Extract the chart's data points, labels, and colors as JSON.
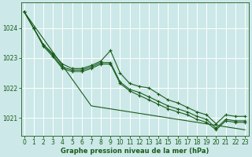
{
  "bg_color": "#cce8e8",
  "grid_color": "#ffffff",
  "line_color": "#1a5c1a",
  "xlabel": "Graphe pression niveau de la mer (hPa)",
  "xlabel_color": "#1a5c1a",
  "tick_color": "#1a5c1a",
  "yticks": [
    1021,
    1022,
    1023,
    1024
  ],
  "xticks": [
    0,
    1,
    2,
    3,
    4,
    5,
    6,
    7,
    8,
    9,
    10,
    11,
    12,
    13,
    14,
    15,
    16,
    17,
    18,
    19,
    20,
    21,
    22,
    23
  ],
  "ylim": [
    1020.4,
    1024.85
  ],
  "xlim": [
    -0.3,
    23.4
  ],
  "straight_line": [
    1024.55,
    1024.1,
    1023.65,
    1023.2,
    1022.75,
    1022.3,
    1021.85,
    1021.4,
    1021.35,
    1021.3,
    1021.25,
    1021.2,
    1021.15,
    1021.1,
    1021.05,
    1021.0,
    1020.95,
    1020.9,
    1020.85,
    1020.8,
    1020.75,
    1020.7,
    1020.65,
    1020.6
  ],
  "series": {
    "line1_x": [
      0,
      1,
      2,
      3,
      4,
      5,
      6,
      7,
      8,
      9,
      10,
      11,
      12,
      13,
      14,
      15,
      16,
      17,
      18,
      19,
      20,
      21,
      22,
      23
    ],
    "line1_y": [
      1024.55,
      1024.0,
      1023.45,
      1023.15,
      1022.8,
      1022.65,
      1022.65,
      1022.75,
      1022.9,
      1023.25,
      1022.5,
      1022.15,
      1022.05,
      1022.0,
      1021.8,
      1021.6,
      1021.5,
      1021.35,
      1021.2,
      1021.1,
      1020.8,
      1021.1,
      1021.05,
      1021.05
    ],
    "line2_x": [
      0,
      1,
      2,
      3,
      4,
      5,
      6,
      7,
      8,
      9,
      10,
      11,
      12,
      13,
      14,
      15,
      16,
      17,
      18,
      19,
      20,
      21,
      22,
      23
    ],
    "line2_y": [
      1024.55,
      1024.0,
      1023.45,
      1023.1,
      1022.7,
      1022.6,
      1022.6,
      1022.7,
      1022.85,
      1022.85,
      1022.2,
      1021.95,
      1021.85,
      1021.7,
      1021.55,
      1021.4,
      1021.3,
      1021.2,
      1021.05,
      1020.95,
      1020.65,
      1020.95,
      1020.9,
      1020.9
    ],
    "line3_x": [
      0,
      1,
      2,
      3,
      4,
      5,
      6,
      7,
      8,
      9,
      10,
      11,
      12,
      13,
      14,
      15,
      16,
      17,
      18,
      19,
      20,
      21,
      22,
      23
    ],
    "line3_y": [
      1024.55,
      1024.0,
      1023.4,
      1023.05,
      1022.65,
      1022.55,
      1022.55,
      1022.65,
      1022.8,
      1022.8,
      1022.15,
      1021.9,
      1021.75,
      1021.6,
      1021.45,
      1021.3,
      1021.2,
      1021.1,
      1020.95,
      1020.85,
      1020.6,
      1020.9,
      1020.85,
      1020.85
    ]
  }
}
